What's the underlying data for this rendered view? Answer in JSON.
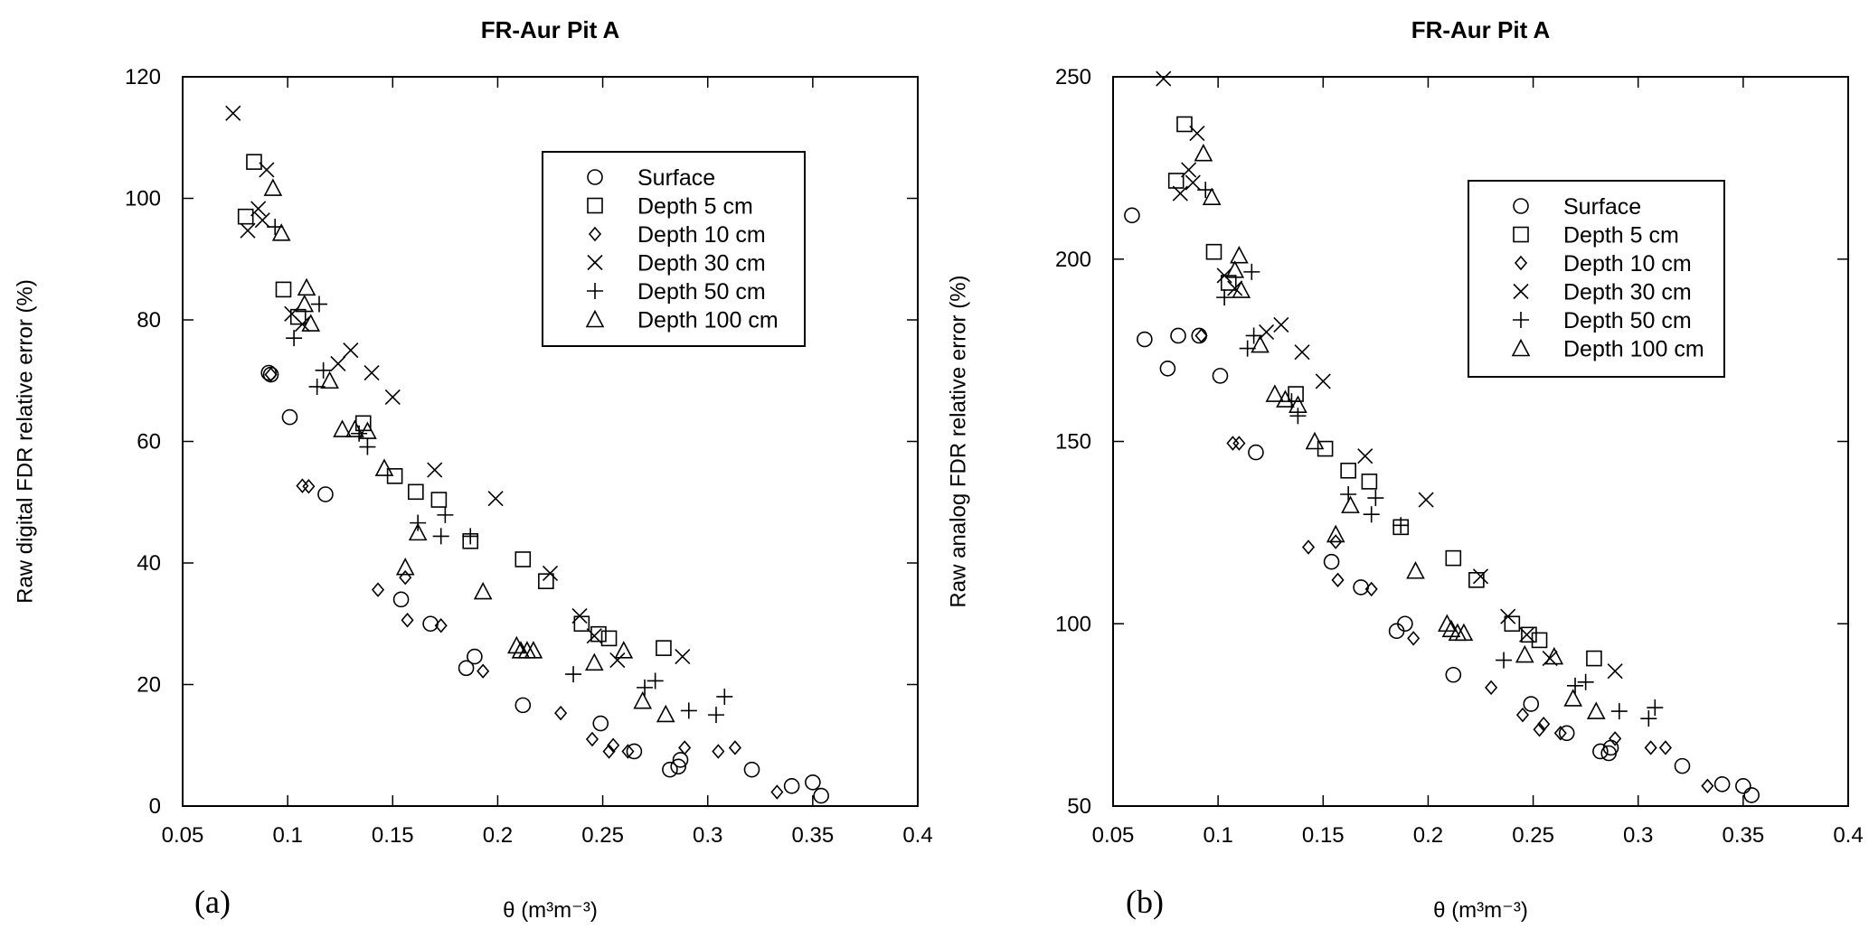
{
  "chart_data": [
    {
      "panel_label": "(a)",
      "type": "scatter",
      "title": "FR-Aur Pit A",
      "xlabel": "θ (m³m⁻³)",
      "ylabel": "Raw digital FDR relative error (%)",
      "xlim": [
        0.05,
        0.4
      ],
      "ylim": [
        0,
        120
      ],
      "xticks": [
        0.05,
        0.1,
        0.15,
        0.2,
        0.25,
        0.3,
        0.35,
        0.4
      ],
      "xtick_labels": [
        "0.05",
        "0.1",
        "0.15",
        "0.2",
        "0.25",
        "0.3",
        "0.35",
        "0.4"
      ],
      "yticks": [
        0,
        20,
        40,
        60,
        80,
        100,
        120
      ],
      "ytick_labels": [
        "0",
        "20",
        "40",
        "60",
        "80",
        "100",
        "120"
      ],
      "grid": false,
      "legend_position": "top-right",
      "series": [
        {
          "name": "Surface",
          "marker": "circle",
          "points": [
            [
              0.091,
              71.3
            ],
            [
              0.092,
              71
            ],
            [
              0.101,
              64
            ],
            [
              0.118,
              51.3
            ],
            [
              0.154,
              34
            ],
            [
              0.168,
              30
            ],
            [
              0.185,
              22.7
            ],
            [
              0.189,
              24.6
            ],
            [
              0.212,
              16.6
            ],
            [
              0.249,
              13.6
            ],
            [
              0.265,
              9
            ],
            [
              0.282,
              6
            ],
            [
              0.286,
              6.5
            ],
            [
              0.287,
              7.6
            ],
            [
              0.321,
              6
            ],
            [
              0.34,
              3.3
            ],
            [
              0.35,
              3.9
            ],
            [
              0.354,
              1.7
            ]
          ]
        },
        {
          "name": "Depth 5 cm",
          "marker": "square",
          "points": [
            [
              0.08,
              97
            ],
            [
              0.084,
              106
            ],
            [
              0.098,
              85
            ],
            [
              0.105,
              80.5
            ],
            [
              0.136,
              63
            ],
            [
              0.151,
              54.3
            ],
            [
              0.161,
              51.7
            ],
            [
              0.172,
              50.4
            ],
            [
              0.187,
              43.6
            ],
            [
              0.212,
              40.6
            ],
            [
              0.223,
              37
            ],
            [
              0.24,
              30
            ],
            [
              0.248,
              28.3
            ],
            [
              0.253,
              27.6
            ],
            [
              0.279,
              26
            ]
          ]
        },
        {
          "name": "Depth 10 cm",
          "marker": "diamond",
          "points": [
            [
              0.092,
              71
            ],
            [
              0.107,
              52.7
            ],
            [
              0.11,
              52.6
            ],
            [
              0.143,
              35.6
            ],
            [
              0.156,
              37.6
            ],
            [
              0.157,
              30.6
            ],
            [
              0.173,
              29.7
            ],
            [
              0.193,
              22.2
            ],
            [
              0.23,
              15.3
            ],
            [
              0.245,
              11
            ],
            [
              0.253,
              9
            ],
            [
              0.255,
              10
            ],
            [
              0.262,
              9
            ],
            [
              0.289,
              9.6
            ],
            [
              0.305,
              9
            ],
            [
              0.313,
              9.6
            ],
            [
              0.333,
              2.3
            ]
          ]
        },
        {
          "name": "Depth 30 cm",
          "marker": "x",
          "points": [
            [
              0.074,
              114
            ],
            [
              0.081,
              94.7
            ],
            [
              0.086,
              98.3
            ],
            [
              0.088,
              96.4
            ],
            [
              0.09,
              104.7
            ],
            [
              0.102,
              81
            ],
            [
              0.107,
              79.3
            ],
            [
              0.124,
              72.8
            ],
            [
              0.13,
              75
            ],
            [
              0.14,
              71.3
            ],
            [
              0.15,
              67.3
            ],
            [
              0.17,
              55.3
            ],
            [
              0.199,
              50.6
            ],
            [
              0.225,
              38.3
            ],
            [
              0.239,
              31.3
            ],
            [
              0.246,
              28
            ],
            [
              0.257,
              24
            ],
            [
              0.288,
              24.6
            ]
          ]
        },
        {
          "name": "Depth 50 cm",
          "marker": "plus",
          "points": [
            [
              0.094,
              95.3
            ],
            [
              0.103,
              77
            ],
            [
              0.115,
              82.6
            ],
            [
              0.114,
              69
            ],
            [
              0.117,
              71.7
            ],
            [
              0.134,
              61.3
            ],
            [
              0.138,
              59.1
            ],
            [
              0.162,
              46.6
            ],
            [
              0.173,
              44.4
            ],
            [
              0.175,
              47.9
            ],
            [
              0.187,
              44.4
            ],
            [
              0.236,
              21.7
            ],
            [
              0.27,
              19.5
            ],
            [
              0.275,
              20.6
            ],
            [
              0.291,
              15.7
            ],
            [
              0.304,
              15
            ],
            [
              0.308,
              18
            ]
          ]
        },
        {
          "name": "Depth 100 cm",
          "marker": "triangle",
          "points": [
            [
              0.093,
              101.7
            ],
            [
              0.097,
              94.3
            ],
            [
              0.108,
              82.6
            ],
            [
              0.109,
              85.3
            ],
            [
              0.111,
              79.4
            ],
            [
              0.12,
              70
            ],
            [
              0.126,
              62
            ],
            [
              0.132,
              62
            ],
            [
              0.138,
              61.7
            ],
            [
              0.146,
              55.6
            ],
            [
              0.156,
              39.3
            ],
            [
              0.162,
              45
            ],
            [
              0.193,
              35.3
            ],
            [
              0.209,
              26.4
            ],
            [
              0.211,
              25.6
            ],
            [
              0.214,
              25.6
            ],
            [
              0.217,
              25.6
            ],
            [
              0.246,
              23.6
            ],
            [
              0.26,
              25.6
            ],
            [
              0.269,
              17.3
            ],
            [
              0.28,
              15.1
            ]
          ]
        }
      ]
    },
    {
      "panel_label": "(b)",
      "type": "scatter",
      "title": "FR-Aur Pit A",
      "xlabel": "θ (m³m⁻³)",
      "ylabel": "Raw analog FDR relative error (%)",
      "xlim": [
        0.05,
        0.4
      ],
      "ylim": [
        50,
        250
      ],
      "xticks": [
        0.05,
        0.1,
        0.15,
        0.2,
        0.25,
        0.3,
        0.35,
        0.4
      ],
      "xtick_labels": [
        "0.05",
        "0.1",
        "0.15",
        "0.2",
        "0.25",
        "0.3",
        "0.35",
        "0.4"
      ],
      "yticks": [
        50,
        100,
        150,
        200,
        250
      ],
      "ytick_labels": [
        "50",
        "100",
        "150",
        "200",
        "250"
      ],
      "grid": false,
      "legend_position": "top-right",
      "series": [
        {
          "name": "Surface",
          "marker": "circle",
          "points": [
            [
              0.059,
              212
            ],
            [
              0.065,
              178
            ],
            [
              0.076,
              170
            ],
            [
              0.081,
              179
            ],
            [
              0.091,
              179
            ],
            [
              0.101,
              168
            ],
            [
              0.118,
              147
            ],
            [
              0.154,
              117
            ],
            [
              0.168,
              110
            ],
            [
              0.185,
              98
            ],
            [
              0.189,
              100
            ],
            [
              0.212,
              86
            ],
            [
              0.249,
              78
            ],
            [
              0.266,
              70
            ],
            [
              0.282,
              65
            ],
            [
              0.286,
              64.5
            ],
            [
              0.287,
              66
            ],
            [
              0.321,
              61
            ],
            [
              0.34,
              56
            ],
            [
              0.35,
              55.5
            ],
            [
              0.354,
              53
            ]
          ]
        },
        {
          "name": "Depth 5 cm",
          "marker": "square",
          "points": [
            [
              0.08,
              221.5
            ],
            [
              0.084,
              237
            ],
            [
              0.098,
              202
            ],
            [
              0.105,
              193.5
            ],
            [
              0.137,
              163
            ],
            [
              0.151,
              148
            ],
            [
              0.162,
              142
            ],
            [
              0.172,
              139
            ],
            [
              0.187,
              126.5
            ],
            [
              0.212,
              118
            ],
            [
              0.223,
              112
            ],
            [
              0.24,
              100
            ],
            [
              0.248,
              97
            ],
            [
              0.253,
              95.5
            ],
            [
              0.279,
              90.5
            ]
          ]
        },
        {
          "name": "Depth 10 cm",
          "marker": "diamond",
          "points": [
            [
              0.092,
              179
            ],
            [
              0.107,
              149.5
            ],
            [
              0.11,
              149.5
            ],
            [
              0.143,
              121
            ],
            [
              0.156,
              122.5
            ],
            [
              0.157,
              112
            ],
            [
              0.173,
              109.5
            ],
            [
              0.193,
              96
            ],
            [
              0.23,
              82.5
            ],
            [
              0.245,
              75
            ],
            [
              0.253,
              71
            ],
            [
              0.255,
              72.5
            ],
            [
              0.263,
              70
            ],
            [
              0.289,
              68.5
            ],
            [
              0.306,
              66
            ],
            [
              0.313,
              66
            ],
            [
              0.333,
              55.5
            ]
          ]
        },
        {
          "name": "Depth 30 cm",
          "marker": "x",
          "points": [
            [
              0.074,
              249.5
            ],
            [
              0.082,
              218
            ],
            [
              0.086,
              224.5
            ],
            [
              0.088,
              221
            ],
            [
              0.09,
              234.5
            ],
            [
              0.103,
              195.5
            ],
            [
              0.108,
              192
            ],
            [
              0.123,
              180
            ],
            [
              0.13,
              182
            ],
            [
              0.14,
              174.5
            ],
            [
              0.15,
              166.5
            ],
            [
              0.17,
              146
            ],
            [
              0.199,
              134
            ],
            [
              0.225,
              113
            ],
            [
              0.238,
              102
            ],
            [
              0.247,
              97
            ],
            [
              0.258,
              90.5
            ],
            [
              0.289,
              87
            ]
          ]
        },
        {
          "name": "Depth 50 cm",
          "marker": "plus",
          "points": [
            [
              0.094,
              219
            ],
            [
              0.103,
              189.5
            ],
            [
              0.116,
              196.5
            ],
            [
              0.114,
              175.5
            ],
            [
              0.117,
              179
            ],
            [
              0.135,
              161
            ],
            [
              0.138,
              157
            ],
            [
              0.162,
              135.5
            ],
            [
              0.173,
              130
            ],
            [
              0.175,
              134.5
            ],
            [
              0.187,
              127
            ],
            [
              0.236,
              90
            ],
            [
              0.27,
              83
            ],
            [
              0.275,
              84
            ],
            [
              0.291,
              76
            ],
            [
              0.305,
              74
            ],
            [
              0.308,
              77
            ]
          ]
        },
        {
          "name": "Depth 100 cm",
          "marker": "triangle",
          "points": [
            [
              0.093,
              229
            ],
            [
              0.097,
              217
            ],
            [
              0.108,
              197
            ],
            [
              0.11,
              201
            ],
            [
              0.111,
              191.5
            ],
            [
              0.12,
              176.5
            ],
            [
              0.127,
              163
            ],
            [
              0.132,
              161.5
            ],
            [
              0.138,
              160
            ],
            [
              0.146,
              150
            ],
            [
              0.156,
              124.5
            ],
            [
              0.163,
              132.5
            ],
            [
              0.194,
              114.5
            ],
            [
              0.209,
              100
            ],
            [
              0.211,
              98.5
            ],
            [
              0.214,
              97.5
            ],
            [
              0.217,
              97.5
            ],
            [
              0.246,
              91.5
            ],
            [
              0.26,
              91
            ],
            [
              0.269,
              79.5
            ],
            [
              0.28,
              76
            ]
          ]
        }
      ]
    }
  ]
}
